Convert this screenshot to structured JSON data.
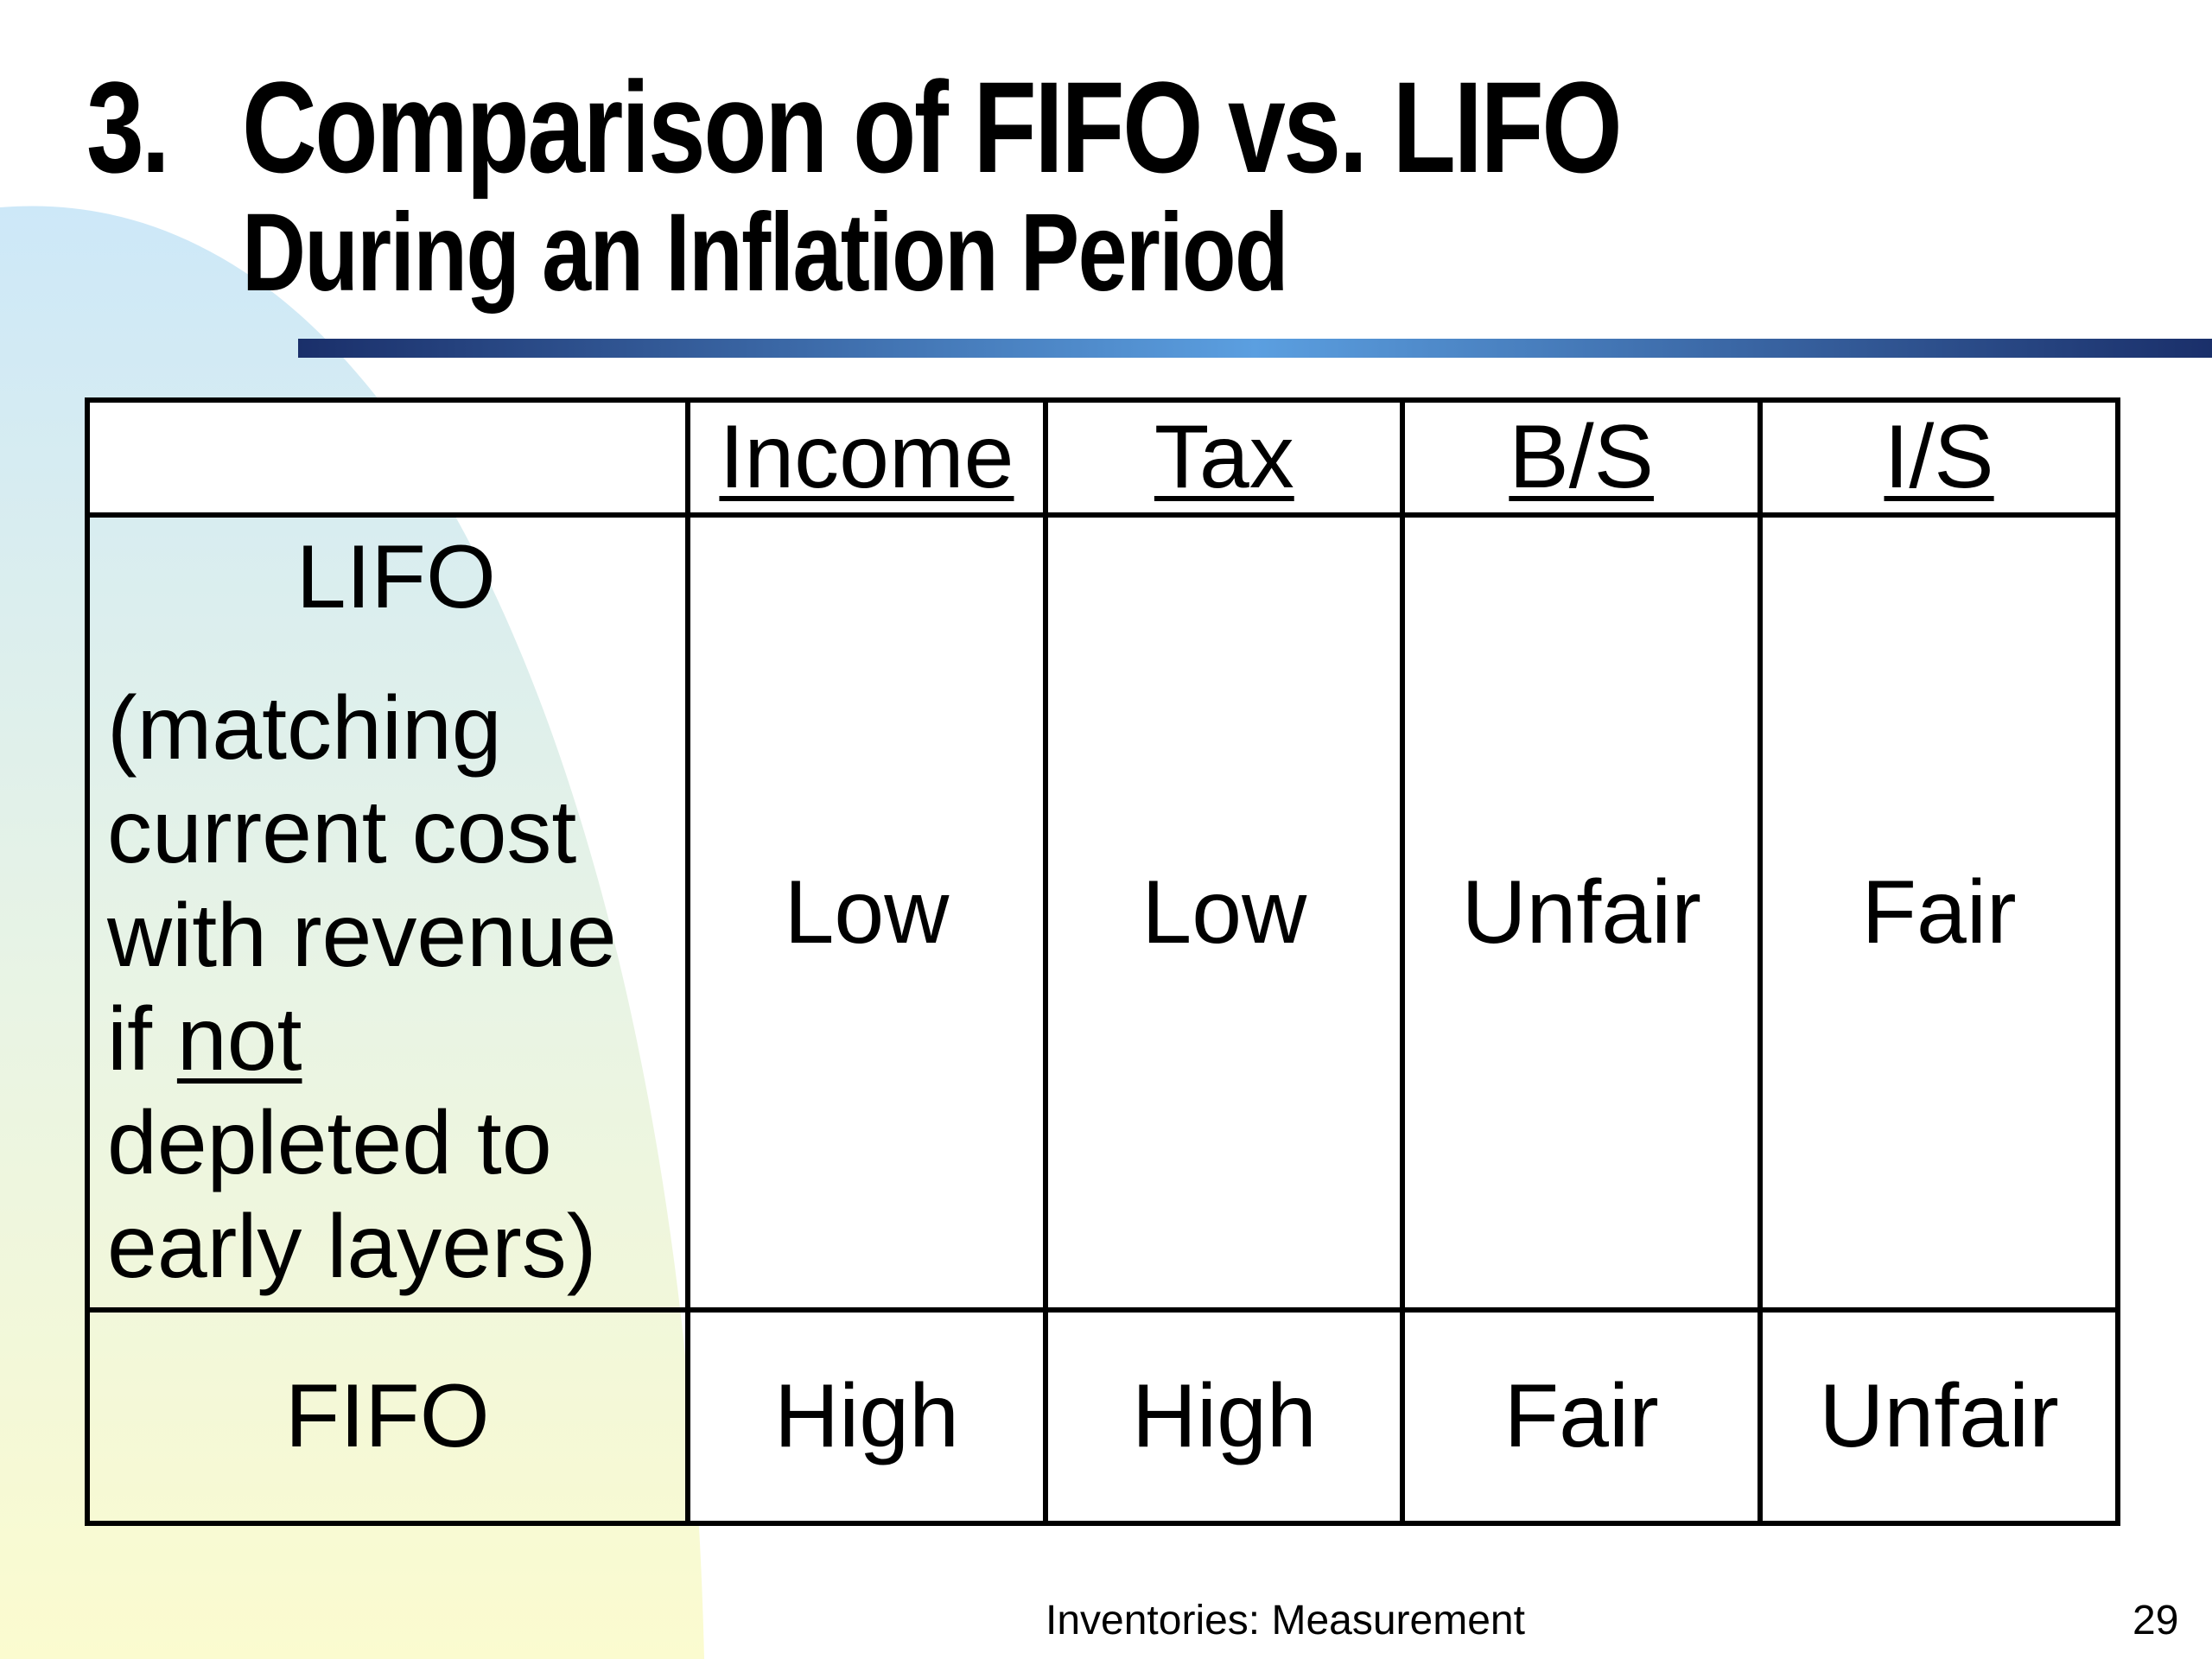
{
  "slide": {
    "number_prefix": "3.",
    "title": "Comparison of FIFO vs. LIFO",
    "subtitle": "During an Inflation Period"
  },
  "table": {
    "columns": [
      "Income",
      "Tax",
      "B/S",
      "I/S"
    ],
    "rows": [
      {
        "name": "LIFO",
        "note_lines": [
          "(matching",
          "current cost",
          "with revenue"
        ],
        "note_if": "if ",
        "note_not": "not",
        "note_tail_lines": [
          "depleted to",
          "early layers)"
        ],
        "values": [
          "Low",
          "Low",
          "Unfair",
          "Fair"
        ]
      },
      {
        "name": "FIFO",
        "values": [
          "High",
          "High",
          "Fair",
          "Unfair"
        ]
      }
    ]
  },
  "footer": {
    "text": "Inventories: Measurement",
    "page": "29"
  },
  "colors": {
    "blob_top": "#cde8f8",
    "blob_bottom": "#fbfbcf",
    "rule_dark": "#1a2f6a",
    "rule_light": "#5b9fe0"
  }
}
